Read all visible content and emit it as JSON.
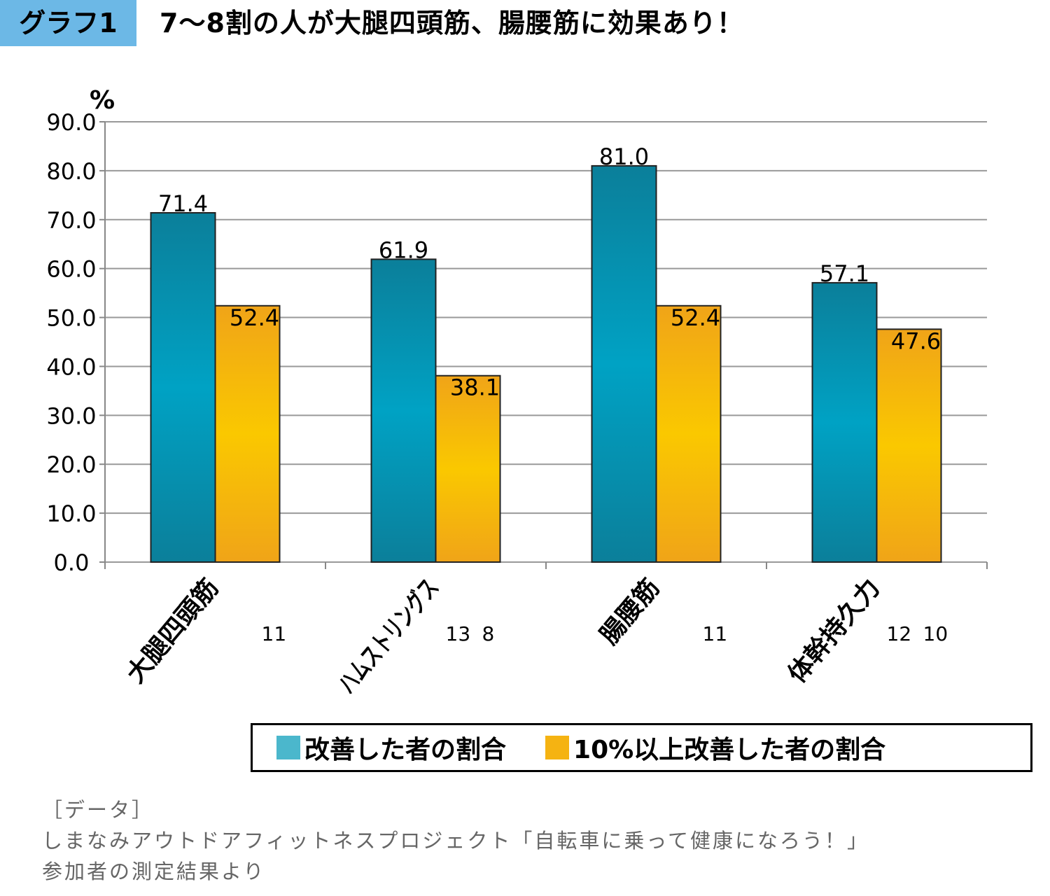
{
  "header": {
    "tag": "グラフ1",
    "title": "7～8割の人が大腿四頭筋、腸腰筋に効果あり！"
  },
  "chart_data": {
    "type": "bar",
    "ylabel": "%",
    "ylim": [
      0,
      90
    ],
    "yticks": [
      "0.0",
      "10.0",
      "20.0",
      "30.0",
      "40.0",
      "50.0",
      "60.0",
      "70.0",
      "80.0",
      "90.0"
    ],
    "grid": true,
    "categories": [
      "大腿四頭筋",
      "ハムストリングス",
      "腸腰筋",
      "体幹持久力"
    ],
    "counts": [
      [
        "",
        "11"
      ],
      [
        "13",
        "8"
      ],
      [
        "",
        "11"
      ],
      [
        "12",
        "10"
      ]
    ],
    "series": [
      {
        "name": "改善した者の割合",
        "values": [
          71.4,
          61.9,
          81.0,
          57.1
        ],
        "labels": [
          "71.4",
          "61.9",
          "81.0",
          "57.1"
        ],
        "color": "#1a93b3"
      },
      {
        "name": "10%以上改善した者の割合",
        "values": [
          52.4,
          38.1,
          52.4,
          47.6
        ],
        "labels": [
          "52.4",
          "38.1",
          "52.4",
          "47.6"
        ],
        "color": "#f5b312"
      }
    ],
    "legend": "bottom"
  },
  "legend": {
    "swatch1": "#4bb7cc",
    "swatch2": "#f5b312"
  },
  "source": {
    "line1": "［データ］",
    "line2": "しまなみアウトドアフィットネスプロジェクト「自転車に乗って健康になろう！」",
    "line3": "参加者の測定結果より"
  }
}
